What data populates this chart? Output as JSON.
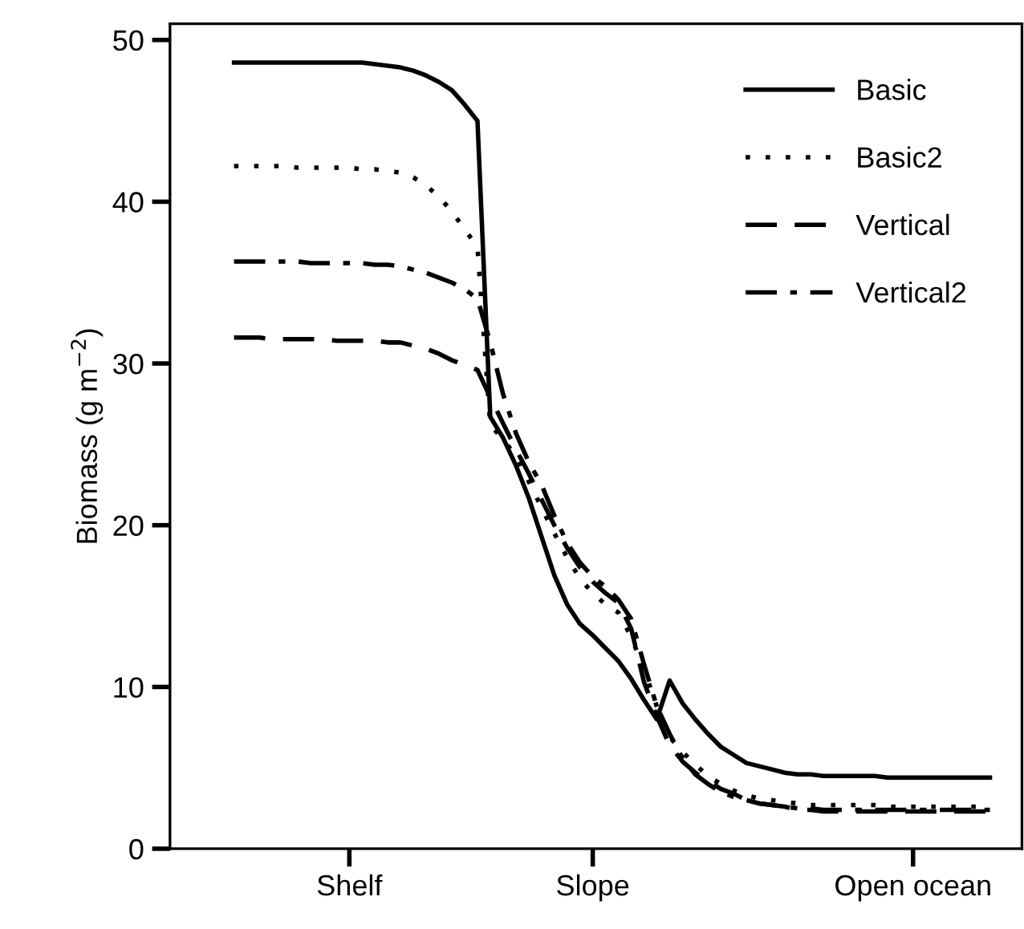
{
  "chart_data": {
    "type": "line",
    "ylabel": "Biomass (g m$^{−2}$)",
    "categories": [
      null,
      null,
      null,
      null,
      null,
      null,
      null,
      null,
      null,
      null,
      null,
      null,
      null,
      null,
      "Shelf",
      null,
      null,
      null,
      null,
      null,
      null,
      null,
      null,
      null,
      null,
      null,
      null,
      null,
      null,
      null,
      null,
      null,
      null,
      "Slope",
      null,
      null,
      null,
      null,
      null,
      null,
      null,
      null,
      null,
      null,
      null,
      null,
      null,
      null,
      null,
      null,
      null,
      null,
      null,
      null,
      null,
      null,
      null,
      null,
      "Open ocean",
      null,
      null,
      null,
      null,
      null,
      null,
      null,
      null
    ],
    "ylim": [
      0,
      51
    ],
    "yticks": [
      0,
      10,
      20,
      30,
      40,
      50
    ],
    "legend": "top right",
    "series": [
      {
        "name": "Basic",
        "color": "#000000",
        "line_style": "solid",
        "values": [
          null,
          null,
          null,
          null,
          null,
          48.6,
          48.6,
          48.6,
          48.6,
          48.6,
          48.6,
          48.6,
          48.6,
          48.6,
          48.6,
          48.6,
          48.5,
          48.4,
          48.3,
          48.1,
          47.8,
          47.4,
          46.9,
          46.0,
          45.0,
          26.7,
          25.4,
          23.7,
          21.7,
          19.3,
          16.9,
          15.1,
          13.9,
          13.2,
          12.4,
          11.6,
          10.5,
          9.2,
          8.0,
          10.4,
          9.0,
          8.0,
          7.1,
          6.3,
          5.8,
          5.3,
          5.1,
          4.9,
          4.7,
          4.6,
          4.6,
          4.5,
          4.5,
          4.5,
          4.5,
          4.5,
          4.4,
          4.4,
          4.4,
          4.4,
          4.4,
          4.4,
          4.4,
          4.4,
          4.4,
          null,
          null
        ]
      },
      {
        "name": "Basic2",
        "color": "#000000",
        "line_style": "dotted",
        "values": [
          null,
          null,
          null,
          null,
          null,
          42.2,
          42.2,
          42.2,
          42.2,
          42.2,
          42.1,
          42.1,
          42.1,
          42.1,
          42.1,
          42.0,
          42.0,
          41.9,
          41.8,
          41.5,
          41.0,
          40.3,
          39.4,
          38.3,
          37.2,
          26.2,
          25.3,
          24.3,
          22.7,
          21.1,
          19.5,
          18.0,
          16.7,
          15.8,
          15.1,
          14.6,
          13.1,
          11.1,
          8.8,
          6.9,
          6.0,
          5.2,
          4.5,
          4.0,
          3.6,
          3.3,
          3.1,
          3.0,
          2.9,
          2.8,
          2.7,
          2.7,
          2.7,
          2.7,
          2.7,
          2.7,
          2.6,
          2.6,
          2.6,
          2.6,
          2.6,
          2.6,
          2.6,
          2.6,
          2.6,
          null,
          null
        ]
      },
      {
        "name": "Vertical",
        "color": "#000000",
        "line_style": "dashed",
        "values": [
          null,
          null,
          null,
          null,
          null,
          31.6,
          31.6,
          31.6,
          31.5,
          31.5,
          31.5,
          31.5,
          31.5,
          31.4,
          31.4,
          31.4,
          31.4,
          31.3,
          31.3,
          31.1,
          30.9,
          30.6,
          30.2,
          29.9,
          29.6,
          27.9,
          26.3,
          24.7,
          23.2,
          21.6,
          20.0,
          18.6,
          17.4,
          16.5,
          15.8,
          15.2,
          13.6,
          10.3,
          8.2,
          6.4,
          5.4,
          4.7,
          4.2,
          3.7,
          3.4,
          3.0,
          2.8,
          2.7,
          2.6,
          2.4,
          2.4,
          2.3,
          2.3,
          2.3,
          2.3,
          2.3,
          2.3,
          2.3,
          2.3,
          2.3,
          2.3,
          2.3,
          2.3,
          2.3,
          2.3,
          null,
          null
        ]
      },
      {
        "name": "Vertical2",
        "color": "#000000",
        "line_style": "dashdot",
        "values": [
          null,
          null,
          null,
          null,
          null,
          36.3,
          36.3,
          36.3,
          36.3,
          36.3,
          36.3,
          36.2,
          36.2,
          36.2,
          36.2,
          36.2,
          36.1,
          36.1,
          36.0,
          35.8,
          35.6,
          35.3,
          35.0,
          34.6,
          34.0,
          31.3,
          28.1,
          25.7,
          23.9,
          22.5,
          20.6,
          18.9,
          17.7,
          16.8,
          16.2,
          15.4,
          14.2,
          11.4,
          8.8,
          7.1,
          5.6,
          4.6,
          4.0,
          3.5,
          3.2,
          3.0,
          2.8,
          2.7,
          2.6,
          2.5,
          2.5,
          2.4,
          2.4,
          2.4,
          2.4,
          2.4,
          2.4,
          2.4,
          2.4,
          2.4,
          2.4,
          2.4,
          2.4,
          2.4,
          2.4,
          null,
          null
        ]
      }
    ]
  }
}
